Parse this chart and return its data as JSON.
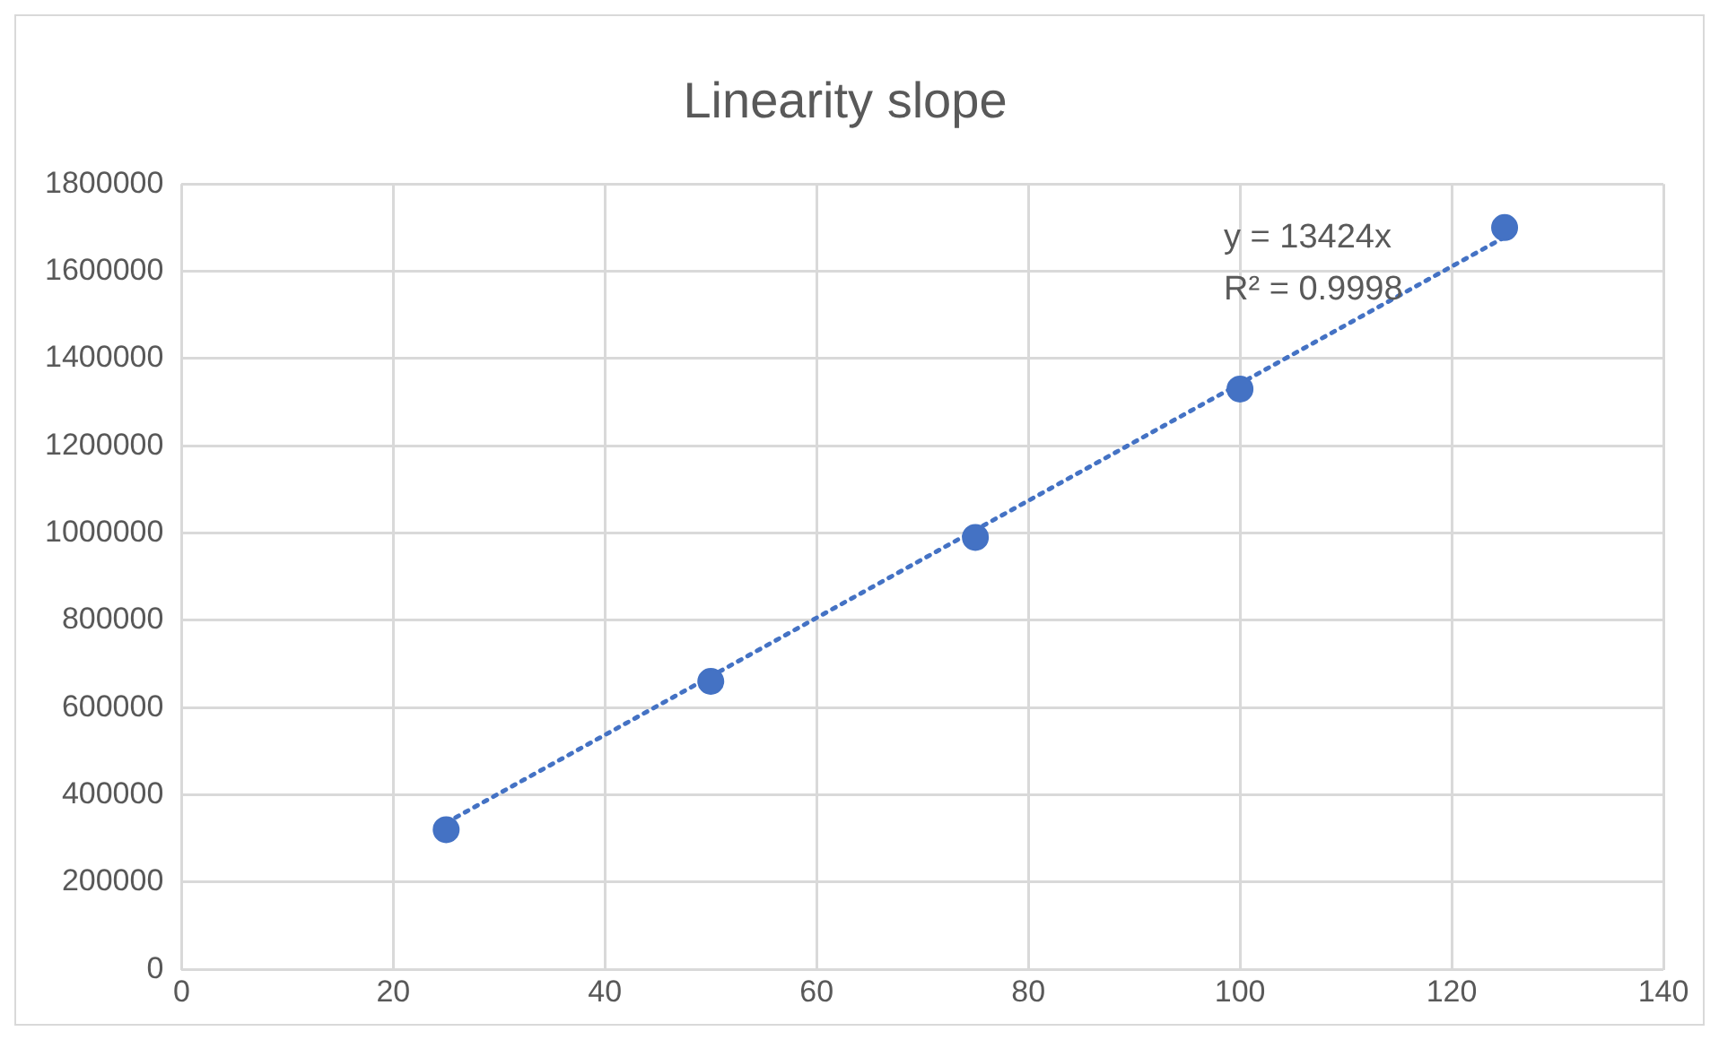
{
  "chart_data": {
    "type": "scatter",
    "title": "Linearity slope",
    "x": [
      25,
      50,
      75,
      100,
      125
    ],
    "series": [
      {
        "type": "scatter",
        "color": "#4472c4",
        "values": [
          320000,
          660000,
          990000,
          1330000,
          1700000
        ],
        "marker": "circle"
      },
      {
        "type": "line",
        "color": "#4472c4",
        "x": [
          25,
          125
        ],
        "values": [
          336000,
          1678000
        ],
        "line_style": "dotted",
        "marker": "none"
      }
    ],
    "xlim": [
      0,
      140
    ],
    "xticks": [
      0,
      20,
      40,
      60,
      80,
      100,
      120,
      140
    ],
    "ylim": [
      0,
      1800000
    ],
    "yticks": [
      0,
      200000,
      400000,
      600000,
      800000,
      1000000,
      1200000,
      1400000,
      1600000,
      1800000
    ],
    "grid": true,
    "legend": false,
    "annotations": [
      "y = 13424x",
      "R² = 0.9998"
    ]
  }
}
